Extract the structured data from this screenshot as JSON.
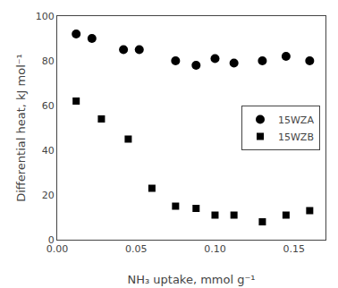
{
  "chart_data": {
    "type": "scatter",
    "xlabel": "NH₃ uptake, mmol g⁻¹",
    "ylabel": "Differential heat, kJ mol⁻¹",
    "series": [
      {
        "name": "15WZA",
        "color": "black",
        "marker": "circle",
        "x": [
          0.012,
          0.022,
          0.042,
          0.052,
          0.075,
          0.088,
          0.1,
          0.112,
          0.13,
          0.145,
          0.16
        ],
        "values": [
          92,
          90,
          85,
          85,
          80,
          78,
          81,
          79,
          80,
          82,
          80
        ]
      },
      {
        "name": "15WZB",
        "color": "black",
        "marker": "square",
        "x": [
          0.012,
          0.028,
          0.045,
          0.06,
          0.075,
          0.088,
          0.1,
          0.112,
          0.13,
          0.145,
          0.16
        ],
        "values": [
          62,
          54,
          45,
          23,
          15,
          14,
          11,
          11,
          8,
          11,
          13
        ]
      }
    ],
    "xlim": [
      0.0,
      0.17
    ],
    "ylim": [
      0,
      100
    ],
    "xticks": [
      {
        "value": 0,
        "label": "0.00"
      },
      0.05,
      {
        "value": 0.1,
        "label": "0.10"
      },
      0.15
    ],
    "yticks": [
      0,
      20,
      40,
      60,
      80,
      100
    ],
    "legend": "right",
    "grid": false
  }
}
